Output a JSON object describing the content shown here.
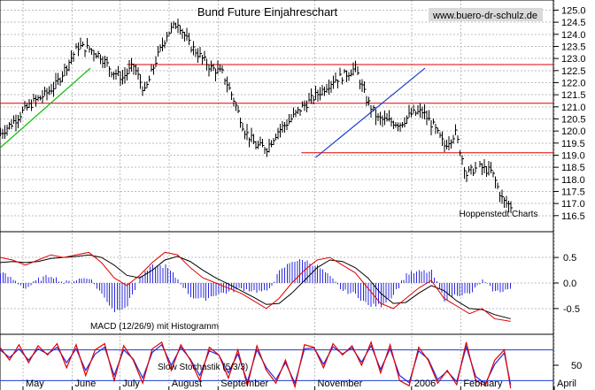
{
  "chart_data": {
    "type": "line",
    "title": "Bund Future Einjahreschart",
    "source_label": "www.buero-dr-schulz.de",
    "credit": "Hoppenstedt Charts",
    "x_labels": [
      {
        "label": "May",
        "day": 0
      },
      {
        "label": "June",
        "day": 31
      },
      {
        "label": "July",
        "day": 61
      },
      {
        "label": "August",
        "day": 92
      },
      {
        "label": "September",
        "day": 123
      },
      {
        "label": "November",
        "day": 184
      },
      {
        "label": "2006",
        "day": 245
      },
      {
        "label": "February",
        "day": 276
      },
      {
        "label": "April",
        "day": 335
      }
    ],
    "price_panel": {
      "ylim": [
        116.2,
        125.2
      ],
      "y_ticks": [
        "125.0",
        "124.5",
        "124.0",
        "123.5",
        "123.0",
        "122.5",
        "122.0",
        "121.5",
        "121.0",
        "120.5",
        "120.0",
        "119.5",
        "119.0",
        "118.5",
        "118.0",
        "117.5",
        "117.0",
        "116.5"
      ],
      "series": {
        "x": [
          0,
          7,
          14,
          21,
          28,
          35,
          42,
          49,
          56,
          63,
          70,
          77,
          84,
          91,
          98,
          105,
          112,
          119,
          126,
          133,
          140,
          147,
          154,
          161,
          168,
          175,
          182,
          189,
          196,
          203,
          210,
          217,
          224,
          231,
          238,
          245,
          252,
          259,
          266,
          273,
          280,
          287,
          294,
          298,
          303,
          310,
          317,
          322
        ],
        "close": [
          119.9,
          120.3,
          120.8,
          121.2,
          121.5,
          121.9,
          122.7,
          123.5,
          123.4,
          123.1,
          122.5,
          122.2,
          122.7,
          121.6,
          122.9,
          124.0,
          124.5,
          123.6,
          123.1,
          122.6,
          122.4,
          121.3,
          120.0,
          119.4,
          119.3,
          120.0,
          120.4,
          120.9,
          121.3,
          121.7,
          122.1,
          122.3,
          122.6,
          121.3,
          120.5,
          120.4,
          120.3,
          120.7,
          120.8,
          120.2,
          119.4,
          119.9,
          118.2,
          118.4,
          118.5,
          118.3,
          117.1,
          116.9
        ]
      },
      "support_resistance": [
        {
          "value": 122.75,
          "from_day": 80,
          "to_day": 340
        },
        {
          "value": 121.15,
          "from_day": 0,
          "to_day": 340
        },
        {
          "value": 119.1,
          "from_day": 190,
          "to_day": 340
        }
      ],
      "trendlines": [
        {
          "color": "green",
          "from": {
            "day": 0,
            "value": 119.3
          },
          "to": {
            "day": 57,
            "value": 122.6
          }
        },
        {
          "color": "blue",
          "from": {
            "day": 199,
            "value": 118.9
          },
          "to": {
            "day": 268,
            "value": 122.6
          }
        }
      ]
    },
    "macd_panel": {
      "label": "MACD (12/26/9) mit Histogramm",
      "ylim": [
        -0.9,
        0.9
      ],
      "y_ticks": [
        "0.5",
        "0.0",
        "-0.5"
      ],
      "x": [
        0,
        8,
        16,
        24,
        32,
        40,
        48,
        56,
        64,
        72,
        80,
        88,
        96,
        104,
        112,
        120,
        128,
        136,
        144,
        152,
        160,
        168,
        176,
        184,
        192,
        200,
        208,
        216,
        224,
        232,
        240,
        248,
        256,
        264,
        272,
        280,
        288,
        296,
        304,
        312,
        322
      ],
      "macd": [
        0.5,
        0.45,
        0.35,
        0.45,
        0.55,
        0.5,
        0.55,
        0.6,
        0.4,
        0.1,
        -0.05,
        0.15,
        0.4,
        0.6,
        0.55,
        0.3,
        0.1,
        0.0,
        -0.1,
        -0.2,
        -0.35,
        -0.5,
        -0.3,
        0.0,
        0.25,
        0.45,
        0.5,
        0.35,
        0.2,
        -0.1,
        -0.4,
        -0.5,
        -0.3,
        -0.1,
        0.05,
        -0.3,
        -0.45,
        -0.6,
        -0.5,
        -0.7,
        -0.75
      ],
      "signal": [
        0.4,
        0.42,
        0.4,
        0.42,
        0.48,
        0.5,
        0.52,
        0.55,
        0.5,
        0.35,
        0.15,
        0.1,
        0.25,
        0.45,
        0.52,
        0.42,
        0.25,
        0.1,
        -0.02,
        -0.15,
        -0.28,
        -0.42,
        -0.4,
        -0.2,
        0.05,
        0.3,
        0.45,
        0.42,
        0.3,
        0.1,
        -0.2,
        -0.4,
        -0.38,
        -0.2,
        -0.05,
        -0.15,
        -0.35,
        -0.5,
        -0.52,
        -0.62,
        -0.7
      ]
    },
    "stochastic_panel": {
      "label": "Slow Stochastik (5/3/3)",
      "ylim": [
        0,
        100
      ],
      "y_ticks": [
        "50"
      ],
      "levels": [
        80,
        20
      ],
      "x": [
        0,
        6,
        12,
        18,
        24,
        30,
        36,
        42,
        48,
        54,
        60,
        66,
        72,
        78,
        84,
        90,
        96,
        102,
        108,
        114,
        120,
        126,
        132,
        138,
        144,
        150,
        156,
        162,
        168,
        174,
        180,
        186,
        192,
        198,
        204,
        210,
        216,
        222,
        228,
        234,
        240,
        246,
        252,
        258,
        264,
        270,
        276,
        282,
        288,
        294,
        300,
        306,
        312,
        318,
        322
      ],
      "k": [
        85,
        60,
        90,
        55,
        88,
        70,
        92,
        45,
        90,
        30,
        80,
        92,
        20,
        88,
        60,
        15,
        82,
        95,
        40,
        90,
        60,
        20,
        85,
        70,
        25,
        80,
        10,
        88,
        40,
        15,
        60,
        8,
        90,
        85,
        45,
        92,
        70,
        88,
        50,
        95,
        35,
        90,
        20,
        10,
        85,
        60,
        15,
        40,
        12,
        95,
        20,
        10,
        60,
        80,
        5
      ],
      "d": [
        80,
        65,
        82,
        60,
        82,
        72,
        85,
        55,
        82,
        40,
        72,
        85,
        30,
        80,
        62,
        25,
        75,
        90,
        50,
        85,
        62,
        30,
        78,
        70,
        35,
        72,
        18,
        80,
        45,
        22,
        55,
        15,
        82,
        84,
        52,
        86,
        72,
        84,
        56,
        88,
        42,
        82,
        30,
        16,
        78,
        62,
        22,
        38,
        18,
        86,
        28,
        14,
        52,
        74,
        12
      ]
    }
  }
}
